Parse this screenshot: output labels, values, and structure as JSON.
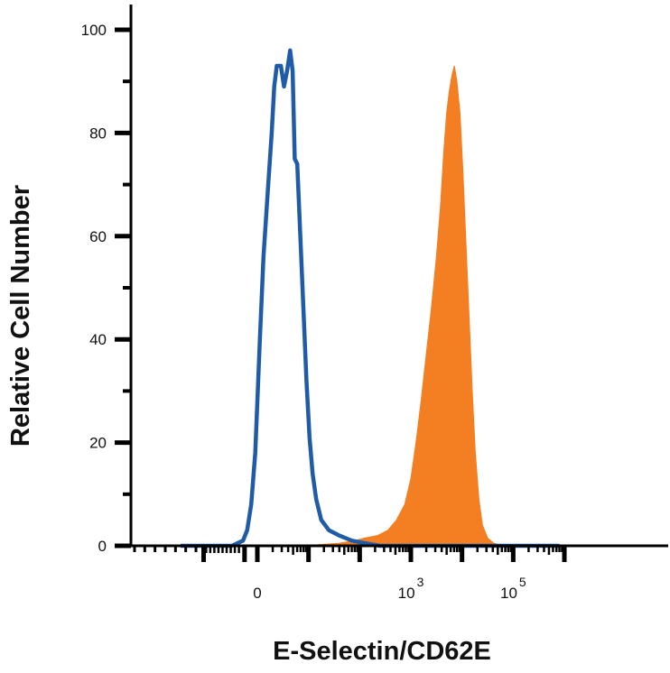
{
  "chart_data": {
    "type": "area",
    "title": "",
    "xlabel": "E-Selectin/CD62E",
    "ylabel": "Relative Cell Number",
    "x_scale": "biexponential (log10 of fluorescence intensity)",
    "x_ticks": [
      {
        "x": 0,
        "base": "0",
        "exp": ""
      },
      {
        "x": 3,
        "base": "10",
        "exp": "3"
      },
      {
        "x": 5,
        "base": "10",
        "exp": "5"
      }
    ],
    "y_ticks": [
      0,
      20,
      40,
      60,
      80,
      100
    ],
    "ylim": [
      0,
      100
    ],
    "grid": false,
    "legend": "none",
    "colors": {
      "isotype": "#1f5ba6",
      "stained": "#f37f22",
      "axis": "#000000"
    },
    "series": [
      {
        "style": "outline",
        "color": "#1f5ba6",
        "points": [
          [
            -1.5,
            0
          ],
          [
            -0.5,
            0
          ],
          [
            -0.28,
            1
          ],
          [
            -0.2,
            3
          ],
          [
            -0.12,
            8
          ],
          [
            -0.04,
            18
          ],
          [
            0.05,
            40
          ],
          [
            0.12,
            56
          ],
          [
            0.2,
            68
          ],
          [
            0.28,
            80
          ],
          [
            0.33,
            89
          ],
          [
            0.38,
            93
          ],
          [
            0.46,
            93
          ],
          [
            0.52,
            89
          ],
          [
            0.58,
            92
          ],
          [
            0.64,
            96
          ],
          [
            0.69,
            92
          ],
          [
            0.73,
            75
          ],
          [
            0.78,
            74
          ],
          [
            0.84,
            60
          ],
          [
            0.9,
            46
          ],
          [
            0.96,
            32
          ],
          [
            1.02,
            21
          ],
          [
            1.08,
            14
          ],
          [
            1.15,
            9
          ],
          [
            1.25,
            5
          ],
          [
            1.4,
            3
          ],
          [
            1.6,
            2
          ],
          [
            1.85,
            1
          ],
          [
            2.1,
            0.5
          ],
          [
            2.4,
            0
          ],
          [
            5.9,
            0
          ]
        ]
      },
      {
        "style": "filled",
        "color": "#f37f22",
        "points": [
          [
            -1.5,
            0
          ],
          [
            0.9,
            0
          ],
          [
            1.6,
            0.5
          ],
          [
            1.9,
            1
          ],
          [
            2.1,
            1.5
          ],
          [
            2.35,
            2
          ],
          [
            2.55,
            3
          ],
          [
            2.72,
            5
          ],
          [
            2.88,
            8
          ],
          [
            3.0,
            13
          ],
          [
            3.1,
            20
          ],
          [
            3.2,
            28
          ],
          [
            3.3,
            37
          ],
          [
            3.4,
            46
          ],
          [
            3.5,
            56
          ],
          [
            3.58,
            66
          ],
          [
            3.64,
            76
          ],
          [
            3.7,
            84
          ],
          [
            3.75,
            88
          ],
          [
            3.8,
            91
          ],
          [
            3.85,
            93
          ],
          [
            3.9,
            90
          ],
          [
            3.96,
            84
          ],
          [
            4.02,
            72
          ],
          [
            4.08,
            58
          ],
          [
            4.14,
            44
          ],
          [
            4.2,
            30
          ],
          [
            4.26,
            18
          ],
          [
            4.33,
            9
          ],
          [
            4.4,
            4
          ],
          [
            4.5,
            1.5
          ],
          [
            4.62,
            0.5
          ],
          [
            4.8,
            0
          ],
          [
            5.9,
            0
          ]
        ]
      }
    ]
  }
}
